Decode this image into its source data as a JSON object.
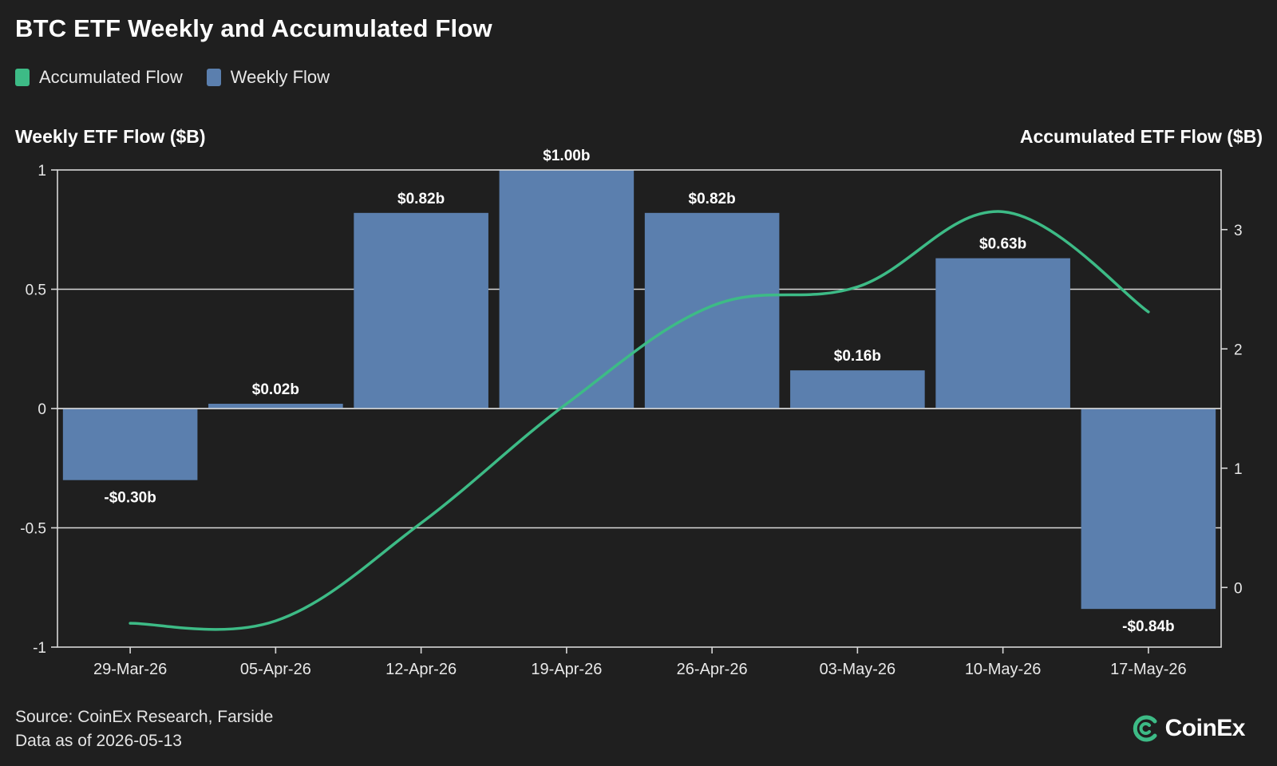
{
  "header": {
    "title": "BTC ETF Weekly and Accumulated Flow"
  },
  "legend": [
    {
      "label": "Accumulated Flow",
      "color": "#3dbb86"
    },
    {
      "label": "Weekly Flow",
      "color": "#5b7fae"
    }
  ],
  "axes": {
    "left_title": "Weekly ETF Flow ($B)",
    "right_title": "Accumulated ETF Flow ($B)"
  },
  "footer": {
    "source": "Source: CoinEx Research, Farside",
    "data_as_of": "Data as of 2026-05-13"
  },
  "brand": {
    "name": "CoinEx",
    "icon": "coinex-logo-icon",
    "color": "#3dbb86"
  },
  "chart_data": {
    "type": "bar",
    "categories": [
      "29-Mar-26",
      "05-Apr-26",
      "12-Apr-26",
      "19-Apr-26",
      "26-Apr-26",
      "03-May-26",
      "10-May-26",
      "17-May-26"
    ],
    "series": [
      {
        "name": "Weekly Flow",
        "type": "bar",
        "axis": "left",
        "color": "#5b7fae",
        "values": [
          -0.3,
          0.02,
          0.82,
          1.0,
          0.82,
          0.16,
          0.63,
          -0.84
        ],
        "labels": [
          "-$0.30b",
          "$0.02b",
          "$0.82b",
          "$1.00b",
          "$0.82b",
          "$0.16b",
          "$0.63b",
          "-$0.84b"
        ]
      },
      {
        "name": "Accumulated Flow",
        "type": "line",
        "axis": "right",
        "color": "#3dbb86",
        "values": [
          -0.3,
          -0.28,
          0.54,
          1.54,
          2.36,
          2.52,
          3.15,
          2.31
        ]
      }
    ],
    "left_axis": {
      "ylim": [
        -1,
        1
      ],
      "ticks": [
        1,
        0.5,
        0,
        -0.5,
        -1
      ],
      "tick_labels": [
        "1",
        "0.5",
        "0",
        "-0.5",
        "-1"
      ]
    },
    "right_axis": {
      "ylim": [
        -0.5,
        3.5
      ],
      "ticks": [
        3,
        2,
        1,
        0
      ],
      "tick_labels": [
        "3",
        "2",
        "1",
        "0"
      ]
    },
    "grid": "horizontal"
  }
}
